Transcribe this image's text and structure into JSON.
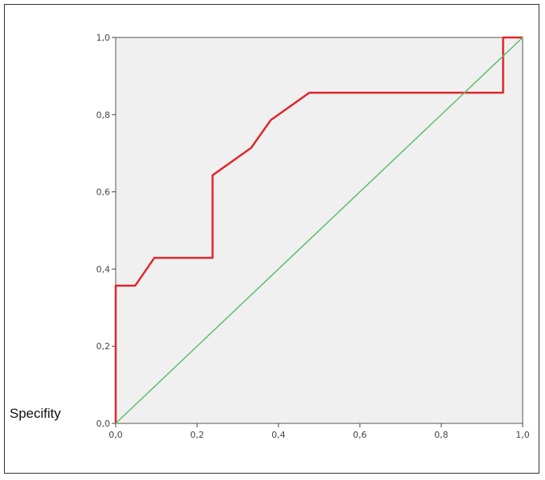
{
  "side_label": "Specifity",
  "chart_data": {
    "type": "line",
    "title": "",
    "xlabel": "",
    "ylabel": "",
    "xlim": [
      0,
      1
    ],
    "ylim": [
      0,
      1
    ],
    "grid": false,
    "plot_background": "#f0f0f0",
    "xticks": [
      "0,0",
      "0,2",
      "0,4",
      "0,6",
      "0,8",
      "1,0"
    ],
    "yticks": [
      "0,0",
      "0,2",
      "0,4",
      "0,6",
      "0,8",
      "1,0"
    ],
    "series": [
      {
        "color": "#e0262b",
        "points": [
          [
            0,
            0
          ],
          [
            0,
            0.357
          ],
          [
            0.048,
            0.357
          ],
          [
            0.095,
            0.429
          ],
          [
            0.238,
            0.429
          ],
          [
            0.238,
            0.643
          ],
          [
            0.333,
            0.714
          ],
          [
            0.381,
            0.786
          ],
          [
            0.476,
            0.857
          ],
          [
            0.952,
            0.857
          ],
          [
            0.952,
            1.0
          ],
          [
            1.0,
            1.0
          ]
        ]
      },
      {
        "color": "#5cbf6a",
        "points": [
          [
            0,
            0
          ],
          [
            1,
            1
          ]
        ]
      }
    ]
  }
}
